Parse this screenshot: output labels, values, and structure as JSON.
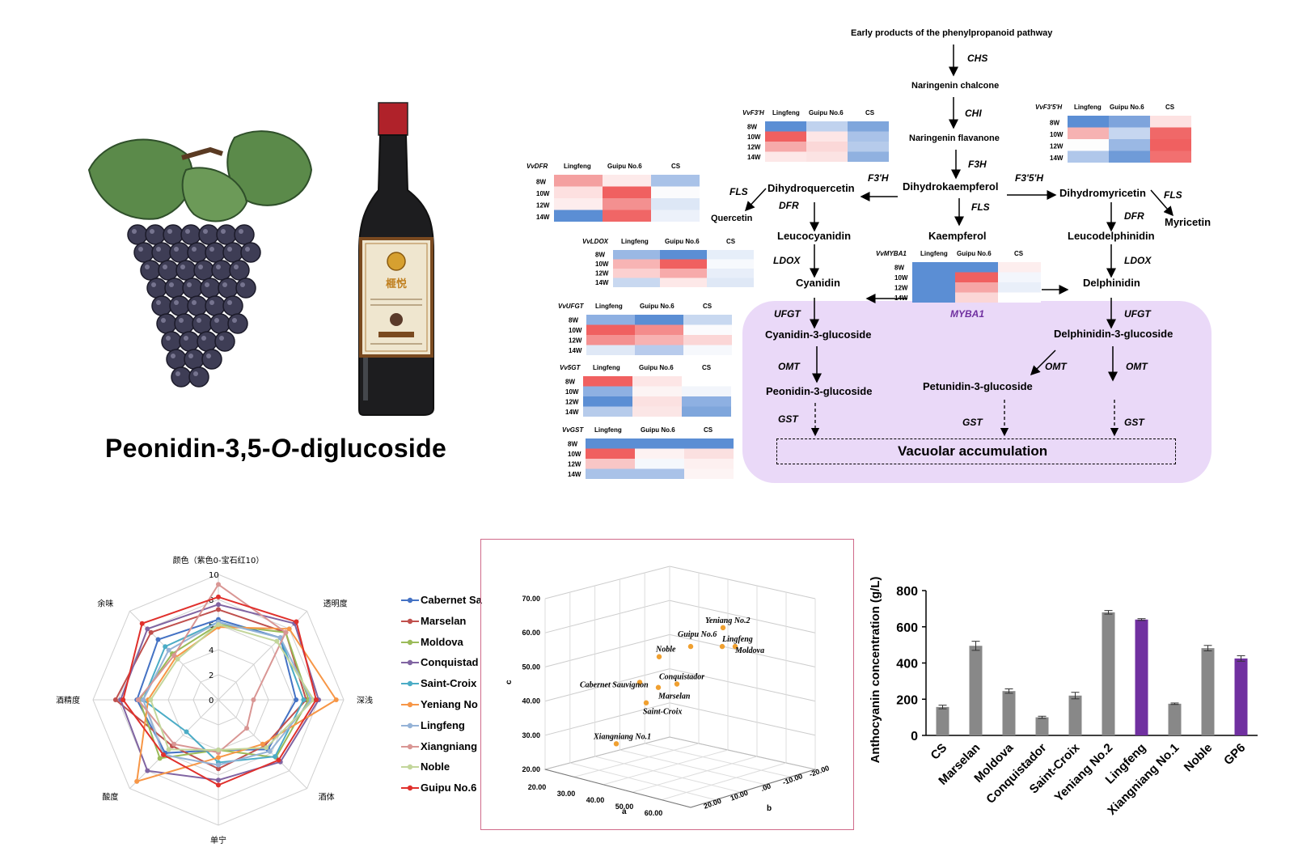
{
  "title": "Peonidin-3,5-O-diglucoside",
  "title_prefix": "Peonidin-3,5-",
  "title_italic": "O",
  "title_suffix": "-diglucoside",
  "bottle_label": "榧悦",
  "pathway": {
    "top": "Early products of the phenylpropanoid pathway",
    "compounds": {
      "naringenin_chalcone": "Naringenin chalcone",
      "naringenin_flavanone": "Naringenin flavanone",
      "dihydrokaempferol": "Dihydrokaempferol",
      "dihydroquercetin": "Dihydroquercetin",
      "dihydromyricetin": "Dihydromyricetin",
      "quercetin": "Quercetin",
      "myricetin": "Myricetin",
      "kaempferol": "Kaempferol",
      "leucocyanidin": "Leucocyanidin",
      "leucodelphinidin": "Leucodelphinidin",
      "cyanidin": "Cyanidin",
      "delphinidin": "Delphinidin",
      "cyanidin_3_glucoside": "Cyanidin-3-glucoside",
      "delphinidin_3_glucoside": "Delphinidin-3-glucoside",
      "peonidin_3_glucoside": "Peonidin-3-glucoside",
      "petunidin_3_glucoside": "Petunidin-3-glucoside",
      "vacuolar": "Vacuolar accumulation"
    },
    "enzymes": {
      "chs": "CHS",
      "chi": "CHI",
      "f3h": "F3H",
      "f3h_prime": "F3'H",
      "f3h5_prime": "F3'5'H",
      "fls": "FLS",
      "dfr": "DFR",
      "ldox": "LDOX",
      "ufgt": "UFGT",
      "omt": "OMT",
      "gst": "GST",
      "myba1": "MYBA1"
    }
  },
  "heatmaps": [
    {
      "id": "VvF3'H",
      "cols": [
        "Lingfeng",
        "Guipu No.6",
        "CS"
      ],
      "rows": [
        "8W",
        "10W",
        "12W",
        "14W"
      ],
      "colors": [
        [
          "#5b8ed4",
          "#c0d2ee",
          "#7fa6dc"
        ],
        [
          "#f06060",
          "#fde6e6",
          "#a9c2e8"
        ],
        [
          "#f6aaaa",
          "#fbd8d8",
          "#b6cbeb"
        ],
        [
          "#fde8e8",
          "#fbe3e3",
          "#90b1e0"
        ]
      ]
    },
    {
      "id": "VvF3'5'H",
      "cols": [
        "Lingfeng",
        "Guipu No.6",
        "CS"
      ],
      "rows": [
        "8W",
        "10W",
        "12W",
        "14W"
      ],
      "colors": [
        [
          "#5b8ed4",
          "#7ea4dc",
          "#fde2e2"
        ],
        [
          "#f6b2b2",
          "#c6d6f0",
          "#f06868"
        ],
        [
          "#fdfdfd",
          "#9ab8e4",
          "#f06060"
        ],
        [
          "#b0c7ea",
          "#6f9bd8",
          "#f27070"
        ]
      ]
    },
    {
      "id": "VvDFR",
      "cols": [
        "Lingfeng",
        "Guipu No.6",
        "CS"
      ],
      "rows": [
        "8W",
        "10W",
        "12W",
        "14W"
      ],
      "colors": [
        [
          "#f4a0a0",
          "#fdeaea",
          "#a9c2e8"
        ],
        [
          "#fde0e0",
          "#f06060",
          "#fbfbfd"
        ],
        [
          "#fdeded",
          "#f39090",
          "#dde7f6"
        ],
        [
          "#5b8ed4",
          "#f06666",
          "#ecf1fa"
        ]
      ]
    },
    {
      "id": "VvLDOX",
      "cols": [
        "Lingfeng",
        "Guipu No.6",
        "CS"
      ],
      "rows": [
        "8W",
        "10W",
        "12W",
        "14W"
      ],
      "colors": [
        [
          "#9ab8e4",
          "#5b8ed4",
          "#e6eef9"
        ],
        [
          "#f8b4b4",
          "#f06060",
          "#f7f9fd"
        ],
        [
          "#fbd0d0",
          "#f7aaaa",
          "#e8eef9"
        ],
        [
          "#c8d8f0",
          "#fde8e8",
          "#dfe8f6"
        ]
      ]
    },
    {
      "id": "VvUFGT",
      "cols": [
        "Lingfeng",
        "Guipu No.6",
        "CS"
      ],
      "rows": [
        "8W",
        "10W",
        "12W",
        "14W"
      ],
      "colors": [
        [
          "#8eb0e2",
          "#5b8ed4",
          "#c8d8f0"
        ],
        [
          "#f06060",
          "#f48c8c",
          "#fbfbfd"
        ],
        [
          "#f49090",
          "#f7b2b2",
          "#fbd6d6"
        ],
        [
          "#dfe8f6",
          "#b8cbec",
          "#f6f8fc"
        ]
      ]
    },
    {
      "id": "Vv5GT",
      "cols": [
        "Lingfeng",
        "Guipu No.6",
        "CS"
      ],
      "rows": [
        "8W",
        "10W",
        "12W",
        "14W"
      ],
      "colors": [
        [
          "#f06060",
          "#fde6e6",
          "#ffffff"
        ],
        [
          "#8eb0e2",
          "#fcf4f4",
          "#f2f5fb"
        ],
        [
          "#5b8ed4",
          "#fbe1e1",
          "#8eb0e2"
        ],
        [
          "#b6cbeb",
          "#fbe6e6",
          "#7fa6dc"
        ]
      ]
    },
    {
      "id": "VvGST",
      "cols": [
        "Lingfeng",
        "Guipu No.6",
        "CS"
      ],
      "rows": [
        "8W",
        "10W",
        "12W",
        "14W"
      ],
      "colors": [
        [
          "#5b8ed4",
          "#5b8ed4",
          "#5b8ed4"
        ],
        [
          "#f06060",
          "#fdf2f2",
          "#fbe0e0"
        ],
        [
          "#f9c6c6",
          "#f5f8fc",
          "#fdf0f0"
        ],
        [
          "#a9c2e8",
          "#a9c2e8",
          "#fdf4f4"
        ]
      ]
    },
    {
      "id": "VvMYBA1",
      "cols": [
        "Lingfeng",
        "Guipu No.6",
        "CS"
      ],
      "rows": [
        "8W",
        "10W",
        "12W",
        "14W"
      ],
      "colors": [
        [
          "#5b8ed4",
          "#5b8ed4",
          "#fdeeee"
        ],
        [
          "#5b8ed4",
          "#f06060",
          "#f3f6fc"
        ],
        [
          "#5b8ed4",
          "#f6a6a6",
          "#e9eff9"
        ],
        [
          "#5b8ed4",
          "#fbd6d6",
          "#ffffff"
        ]
      ]
    }
  ],
  "chart_data": [
    {
      "type": "radar",
      "axes": [
        "颜色（紫色0-宝石红10）",
        "透明度",
        "深浅",
        "酒体",
        "单宁",
        "酸度",
        "酒精度",
        "余味"
      ],
      "ticks": [
        "10",
        "8",
        "6",
        "4",
        "2",
        "0"
      ],
      "rmax": 10,
      "series": [
        {
          "name": "Cabernet Sauvignon",
          "legend_label": "Cabernet Sa",
          "color": "#4472c4",
          "values": [
            6.4,
            7.0,
            6.2,
            5.6,
            4.0,
            6.0,
            6.5,
            6.8
          ]
        },
        {
          "name": "Marselan",
          "legend_label": "Marselan",
          "color": "#c0504d",
          "values": [
            7.2,
            7.6,
            7.0,
            5.2,
            5.5,
            5.2,
            8.2,
            7.6
          ]
        },
        {
          "name": "Moldova",
          "legend_label": "Moldova",
          "color": "#9bbb59",
          "values": [
            6.0,
            7.6,
            7.2,
            6.5,
            4.0,
            6.6,
            6.3,
            5.2
          ]
        },
        {
          "name": "Conquistador",
          "legend_label": "Conquistad",
          "color": "#8064a2",
          "values": [
            7.6,
            8.6,
            8.0,
            7.0,
            6.4,
            8.0,
            7.8,
            8.0
          ]
        },
        {
          "name": "Saint-Croix",
          "legend_label": "Saint-Croix",
          "color": "#4bacc6",
          "values": [
            6.2,
            7.0,
            6.8,
            6.4,
            5.0,
            3.6,
            6.0,
            6.0
          ]
        },
        {
          "name": "Yeniang No.2",
          "legend_label": "Yeniang No",
          "color": "#f79646",
          "values": [
            5.8,
            8.0,
            9.4,
            5.0,
            4.6,
            9.2,
            5.6,
            4.8
          ]
        },
        {
          "name": "Lingfeng",
          "legend_label": "Lingfeng",
          "color": "#95b3d7",
          "values": [
            6.2,
            7.0,
            7.4,
            5.8,
            5.2,
            6.2,
            6.0,
            5.6
          ]
        },
        {
          "name": "Xiangniang No.1",
          "legend_label": "Xiangniang",
          "color": "#d99694",
          "values": [
            9.2,
            7.6,
            2.8,
            3.2,
            4.2,
            5.0,
            6.4,
            5.0
          ]
        },
        {
          "name": "Noble",
          "legend_label": "Noble",
          "color": "#c3d69b",
          "values": [
            6.0,
            6.6,
            7.6,
            5.4,
            4.0,
            5.6,
            5.4,
            4.6
          ]
        },
        {
          "name": "Guipu No.6",
          "legend_label": "Guipu No.6",
          "color": "#e0302c",
          "values": [
            8.2,
            8.8,
            7.8,
            6.8,
            6.8,
            6.2,
            7.6,
            8.6
          ]
        }
      ]
    },
    {
      "type": "scatter",
      "subtype": "3d",
      "xlabel": "a",
      "ylabel": "b",
      "zlabel": "c",
      "x_ticks": [
        "20.00",
        "30.00",
        "40.00",
        "50.00",
        "60.00"
      ],
      "y_ticks": [
        "20.00",
        "10.00",
        ".00",
        "-10.00",
        "-20.00"
      ],
      "z_ticks": [
        "70.00",
        "60.00",
        "50.00",
        "40.00",
        "30.00",
        "20.00"
      ],
      "marker_color": "#f0a030",
      "points": [
        {
          "label": "Yeniang No.2",
          "c": 61.5
        },
        {
          "label": "Guipu No.6",
          "c": 56.0
        },
        {
          "label": "Lingfeng",
          "c": 56.0
        },
        {
          "label": "Moldova",
          "c": 56.0
        },
        {
          "label": "Noble",
          "c": 53.0
        },
        {
          "label": "Conquistador",
          "c": 45.0
        },
        {
          "label": "Cabernet Sauvignon",
          "c": 45.5
        },
        {
          "label": "Marselan",
          "c": 44.0
        },
        {
          "label": "Saint-Croix",
          "c": 39.5
        },
        {
          "label": "Xiangniang No.1",
          "c": 27.5
        }
      ]
    },
    {
      "type": "bar",
      "ylabel": "Anthocyanin concentration (g/L)",
      "ylim": [
        0,
        800
      ],
      "yticks": [
        0,
        200,
        400,
        600,
        800
      ],
      "categories": [
        "CS",
        "Marselan",
        "Moldova",
        "Conquistador",
        "Saint-Croix",
        "Yeniang No.2",
        "Lingfeng",
        "Xiangniang No.1",
        "Noble",
        "GP6"
      ],
      "values": [
        157,
        495,
        245,
        100,
        220,
        680,
        640,
        175,
        482,
        425
      ],
      "errors": [
        10,
        25,
        12,
        6,
        18,
        10,
        5,
        4,
        15,
        15
      ],
      "colors": [
        "#888888",
        "#888888",
        "#888888",
        "#888888",
        "#888888",
        "#888888",
        "#7030a0",
        "#888888",
        "#888888",
        "#7030a0"
      ]
    }
  ]
}
